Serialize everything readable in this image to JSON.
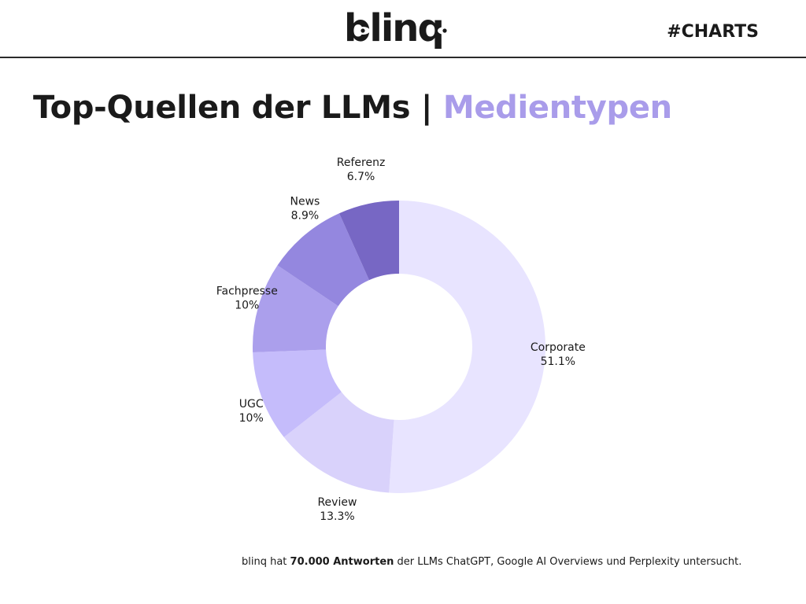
{
  "header": {
    "logo_text": "blinq",
    "tag": "#CHARTS"
  },
  "title": {
    "main": "Top-Quellen der LLMs | ",
    "accent": "Medientypen"
  },
  "colors": {
    "accent": "#a99cea",
    "slices": [
      "#e8e4ff",
      "#d9d2fb",
      "#c5bcfb",
      "#ab9fec",
      "#9487df",
      "#7767c4"
    ]
  },
  "chart_data": {
    "type": "pie",
    "donut": true,
    "categories": [
      "Corporate",
      "Review",
      "UGC",
      "Fachpresse",
      "News",
      "Referenz"
    ],
    "values": [
      51.1,
      13.3,
      10,
      10,
      8.9,
      6.7
    ],
    "value_labels": [
      "51.1%",
      "13.3%",
      "10%",
      "10%",
      "8.9%",
      "6.7%"
    ],
    "start_angle_deg": 0,
    "direction": "clockwise"
  },
  "footer": {
    "prefix": "blinq hat ",
    "bold": "70.000 Antworten",
    "suffix": " der LLMs ChatGPT, Google AI Overviews und Perplexity untersucht."
  }
}
